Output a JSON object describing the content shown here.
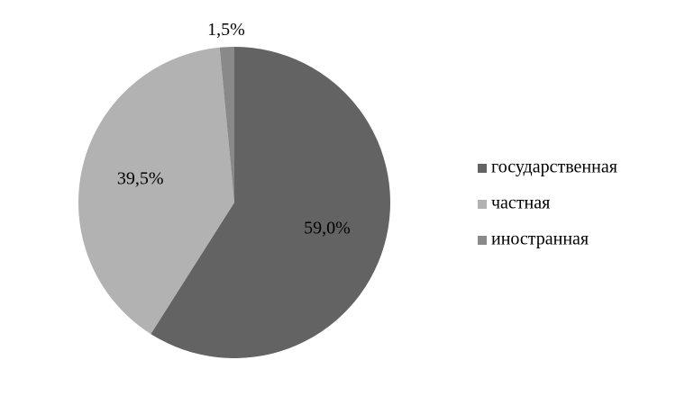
{
  "chart_data": {
    "type": "pie",
    "categories": [
      "государственная",
      "частная",
      "иностранная"
    ],
    "values": [
      59.0,
      39.5,
      1.5
    ],
    "value_labels": [
      "59,0%",
      "39,5%",
      "1,5%"
    ],
    "colors": [
      "#636363",
      "#b2b2b2",
      "#898989"
    ],
    "legend": "right"
  }
}
